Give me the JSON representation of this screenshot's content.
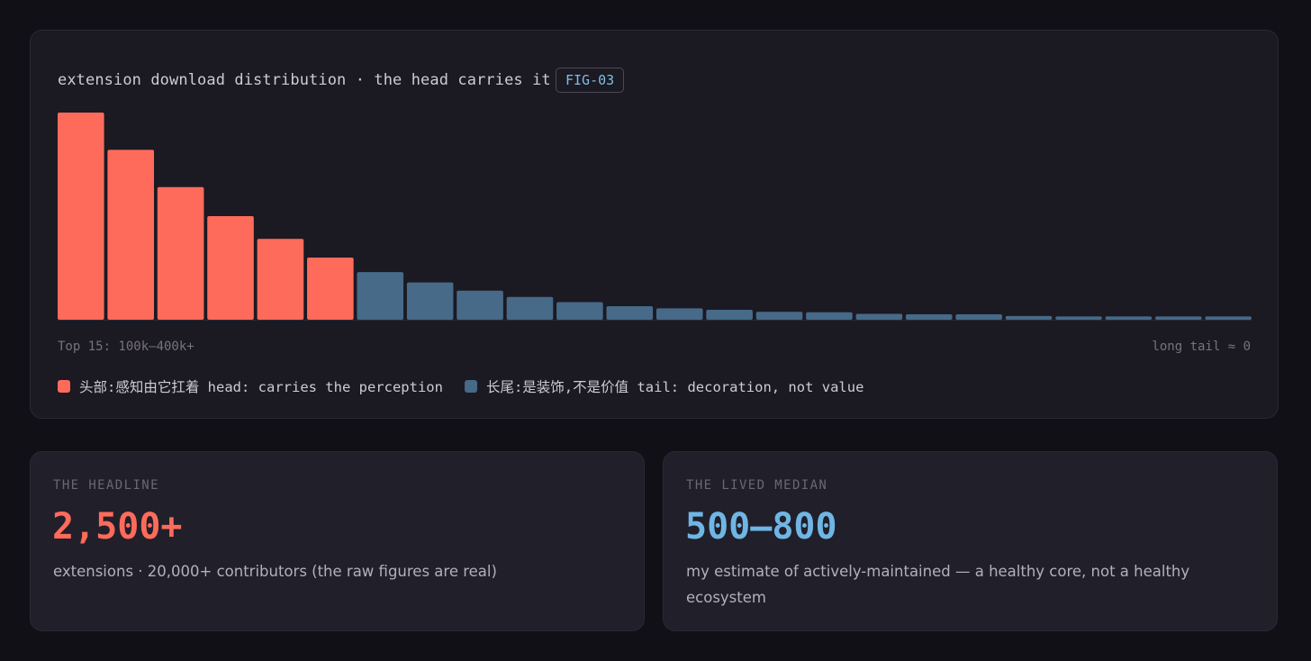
{
  "colors": {
    "head": "#ff6b5b",
    "tail": "#466a88",
    "headline_value": "#ff6b5b",
    "median_value": "#6fb6e4",
    "fig_tag": "#7fbde8"
  },
  "chart_card": {
    "fig_tag": "FIG-03",
    "note_left": "Top 15: 100k–400k+",
    "note_right": "long tail ≈ 0"
  },
  "chart_data": {
    "type": "bar",
    "title": "extension download distribution · the head carries it",
    "xlabel": "",
    "ylabel": "",
    "grid": false,
    "legend_position": "bottom-left",
    "values": [
      100,
      82,
      64,
      50,
      39,
      30,
      23,
      18,
      14,
      11,
      8.5,
      6.5,
      5.5,
      4.8,
      3.8,
      3.6,
      2.8,
      2.6,
      2.6,
      1.8,
      1.6,
      1.6,
      1.6,
      1.6
    ],
    "groups": [
      "head",
      "head",
      "head",
      "head",
      "head",
      "head",
      "tail",
      "tail",
      "tail",
      "tail",
      "tail",
      "tail",
      "tail",
      "tail",
      "tail",
      "tail",
      "tail",
      "tail",
      "tail",
      "tail",
      "tail",
      "tail",
      "tail",
      "tail"
    ],
    "legend": [
      {
        "group": "head",
        "label": "头部:感知由它扛着 head: carries the perception"
      },
      {
        "group": "tail",
        "label": "长尾:是装饰,不是价值 tail: decoration, not value"
      }
    ]
  },
  "stats": {
    "headline": {
      "label": "THE HEADLINE",
      "value": "2,500+",
      "desc": "extensions · 20,000+ contributors (the raw figures are real)"
    },
    "median": {
      "label": "THE LIVED MEDIAN",
      "value": "500–800",
      "desc": "my estimate of actively-maintained — a healthy core, not a healthy ecosystem"
    }
  }
}
